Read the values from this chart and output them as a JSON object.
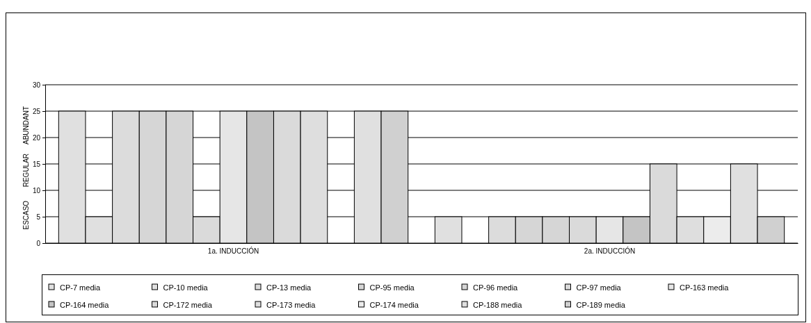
{
  "chart_data": {
    "type": "bar",
    "categories": [
      "1a. INDUCCIÓN",
      "2a. INDUCCIÓN"
    ],
    "series": [
      {
        "name": "CP-7 media",
        "color": "#e0e0e0",
        "values": [
          25,
          5
        ]
      },
      {
        "name": "CP-10 media",
        "color": "#e0e0e0",
        "values": [
          5,
          0
        ]
      },
      {
        "name": "CP-13 media",
        "color": "#dcdcdc",
        "values": [
          25,
          5
        ]
      },
      {
        "name": "CP-95 media",
        "color": "#d6d6d6",
        "values": [
          25,
          5
        ]
      },
      {
        "name": "CP-96 media",
        "color": "#d6d6d6",
        "values": [
          25,
          5
        ]
      },
      {
        "name": "CP-97 media",
        "color": "#dadada",
        "values": [
          5,
          5
        ]
      },
      {
        "name": "CP-163 media",
        "color": "#e6e6e6",
        "values": [
          25,
          5
        ]
      },
      {
        "name": "CP-164 media",
        "color": "#c4c4c4",
        "values": [
          25,
          5
        ]
      },
      {
        "name": "CP-172 media",
        "color": "#dadada",
        "values": [
          25,
          15
        ]
      },
      {
        "name": "CP-173 media",
        "color": "#dedede",
        "values": [
          25,
          5
        ]
      },
      {
        "name": "CP-174 media",
        "color": "#ececec",
        "values": [
          0,
          5
        ]
      },
      {
        "name": "CP-188 media",
        "color": "#e0e0e0",
        "values": [
          25,
          15
        ]
      },
      {
        "name": "CP-189 media",
        "color": "#d0d0d0",
        "values": [
          25,
          5
        ]
      }
    ],
    "ylim": [
      0,
      30
    ],
    "yticks": [
      0,
      5,
      10,
      15,
      20,
      25,
      30
    ],
    "grid": "y",
    "legend": "bottom",
    "annotations": [
      "ESCASO",
      "REGULAR",
      "ABUNDANT"
    ]
  }
}
